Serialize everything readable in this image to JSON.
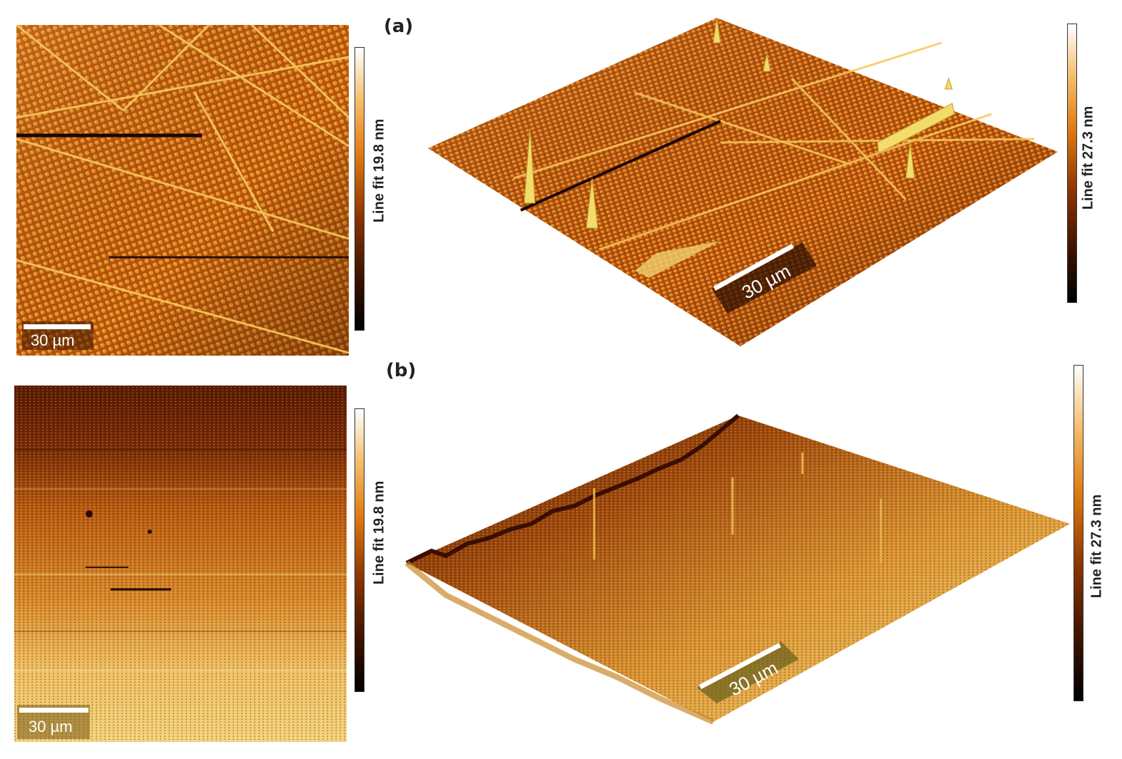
{
  "panels": [
    {
      "label": "(a)",
      "scalebar_2d": "30 µm",
      "scalebar_3d": "30 µm",
      "colorbar_2d": "Line fit 19.8 nm",
      "colorbar_3d": "Line fit 27.3 nm"
    },
    {
      "label": "(b)",
      "scalebar_2d": "30 µm",
      "scalebar_3d": "30 µm",
      "colorbar_2d": "Line fit 19.8 nm",
      "colorbar_3d": "Line fit 27.3 nm"
    }
  ],
  "colors": {
    "surface_a": "#c5620f",
    "surface_b_dark": "#5a1a02",
    "surface_b_light": "#f1c45a",
    "ridge": "#f7c75a"
  }
}
